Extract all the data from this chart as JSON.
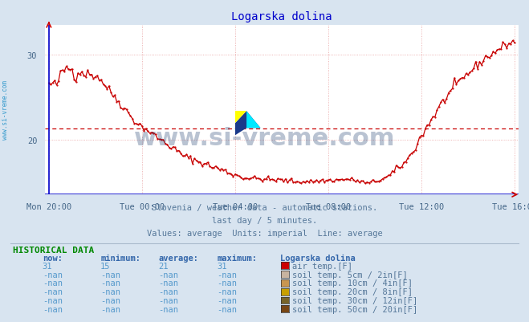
{
  "title": "Logarska dolina",
  "bg_color": "#d8e4f0",
  "plot_bg_color": "#ffffff",
  "line_color": "#c80000",
  "avg_line_color": "#c80000",
  "avg_line_value": 21.3,
  "axis_color": "#0000cc",
  "grid_color": "#e8a0a0",
  "ylabel_text": "www.si-vreme.com",
  "ylabel_color": "#3399cc",
  "x_labels": [
    "Mon 20:00",
    "Tue 00:00",
    "Tue 04:00",
    "Tue 08:00",
    "Tue 12:00",
    "Tue 16:00"
  ],
  "x_ticks": [
    0,
    48,
    96,
    144,
    192,
    240
  ],
  "y_ticks": [
    20,
    30
  ],
  "ylim": [
    13.5,
    33.5
  ],
  "xlim": [
    -2,
    242
  ],
  "subtitle1": "Slovenia / weather data - automatic stations.",
  "subtitle2": "last day / 5 minutes.",
  "subtitle3": "Values: average  Units: imperial  Line: average",
  "subtitle_color": "#557799",
  "hist_title": "HISTORICAL DATA",
  "hist_title_color": "#008800",
  "col_header_color": "#3366aa",
  "data_val_color": "#5599cc",
  "col_headers": [
    "now:",
    "minimum:",
    "average:",
    "maximum:",
    "Logarska dolina"
  ],
  "rows": [
    {
      "now": "31",
      "min": "15",
      "avg": "21",
      "max": "31",
      "color": "#cc0000",
      "label": "air temp.[F]"
    },
    {
      "now": "-nan",
      "min": "-nan",
      "avg": "-nan",
      "max": "-nan",
      "color": "#c8b4a0",
      "label": "soil temp. 5cm / 2in[F]"
    },
    {
      "now": "-nan",
      "min": "-nan",
      "avg": "-nan",
      "max": "-nan",
      "color": "#c89650",
      "label": "soil temp. 10cm / 4in[F]"
    },
    {
      "now": "-nan",
      "min": "-nan",
      "avg": "-nan",
      "max": "-nan",
      "color": "#c8a000",
      "label": "soil temp. 20cm / 8in[F]"
    },
    {
      "now": "-nan",
      "min": "-nan",
      "avg": "-nan",
      "max": "-nan",
      "color": "#786428",
      "label": "soil temp. 30cm / 12in[F]"
    },
    {
      "now": "-nan",
      "min": "-nan",
      "avg": "-nan",
      "max": "-nan",
      "color": "#784614",
      "label": "soil temp. 50cm / 20in[F]"
    }
  ],
  "watermark_text": "www.si-vreme.com",
  "watermark_color": "#1a3a6a",
  "watermark_alpha": 0.3,
  "watermark_fontsize": 22
}
